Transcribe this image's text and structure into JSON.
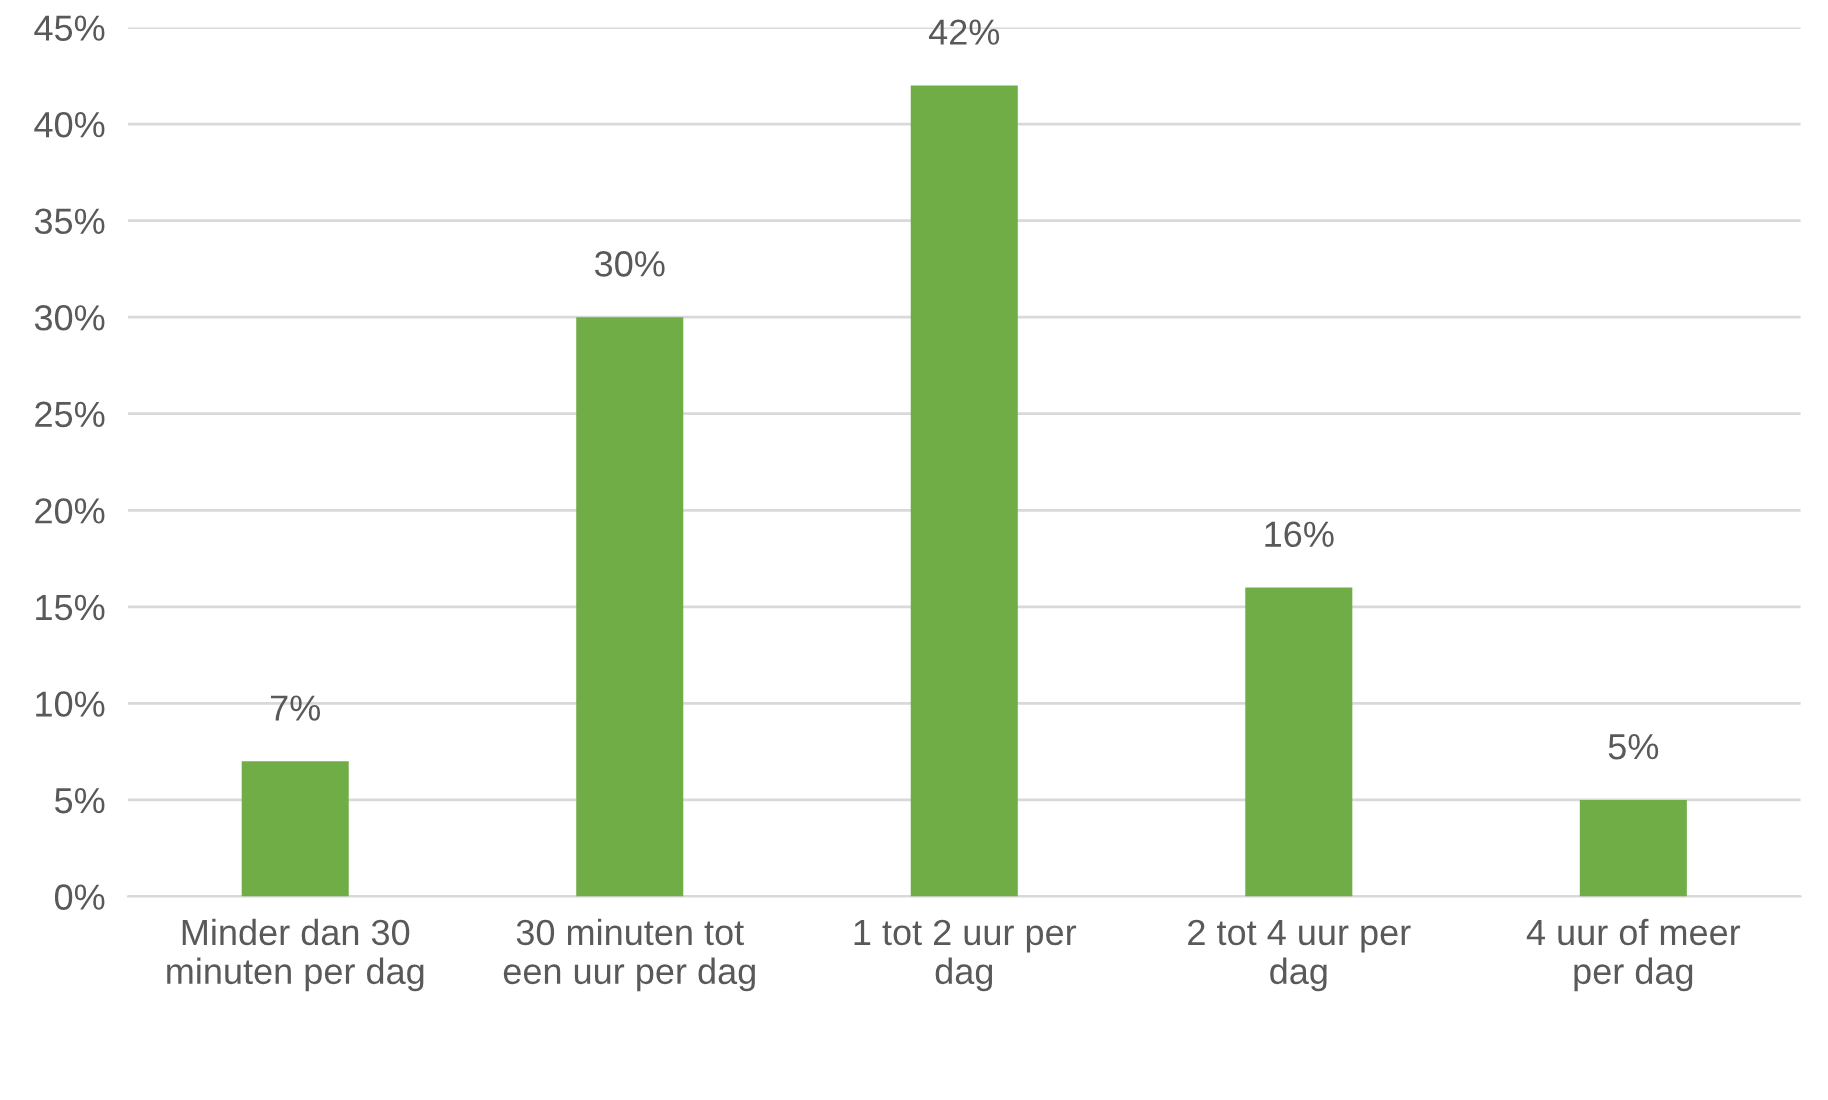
{
  "chart_data": {
    "type": "bar",
    "categories": [
      "Minder dan 30\nminuten per dag",
      "30 minuten tot\neen uur per dag",
      "1 tot 2 uur per\ndag",
      "2 tot 4 uur per\ndag",
      "4 uur of meer\nper dag"
    ],
    "values": [
      7,
      30,
      42,
      16,
      5
    ],
    "value_labels": [
      "7%",
      "30%",
      "42%",
      "16%",
      "5%"
    ],
    "color": "#70ad47",
    "ylim": [
      0,
      45
    ],
    "yticks": [
      {
        "value": 0,
        "label": "0%"
      },
      {
        "value": 5,
        "label": "5%"
      },
      {
        "value": 10,
        "label": "10%"
      },
      {
        "value": 15,
        "label": "15%"
      },
      {
        "value": 20,
        "label": "20%"
      },
      {
        "value": 25,
        "label": "25%"
      },
      {
        "value": 30,
        "label": "30%"
      },
      {
        "value": 35,
        "label": "35%"
      },
      {
        "value": 40,
        "label": "40%"
      },
      {
        "value": 45,
        "label": "45%"
      }
    ],
    "grid": "y"
  }
}
